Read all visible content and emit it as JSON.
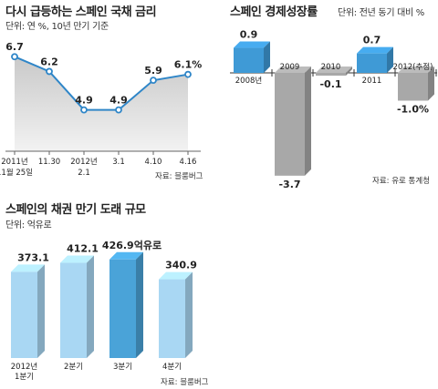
{
  "chart_data": [
    {
      "type": "line",
      "title": "다시 급등하는 스페인 국채 금리",
      "subtitle": "단위: 연 %, 10년 만기 기준",
      "source": "자료: 블룸버그",
      "x": [
        "2011년 11월 25일",
        "11.30",
        "2012년 2.1",
        "3.1",
        "4.10",
        "4.16"
      ],
      "x_lines": [
        [
          "2011년",
          "11월 25일"
        ],
        [
          "11.30"
        ],
        [
          "2012년",
          "2.1"
        ],
        [
          "3.1"
        ],
        [
          "4.10"
        ],
        [
          "4.16"
        ]
      ],
      "values": [
        6.7,
        6.2,
        4.9,
        4.9,
        5.9,
        6.1
      ],
      "value_labels": [
        "6.7",
        "6.2",
        "4.9",
        "4.9",
        "5.9",
        "6.1%"
      ],
      "ylim": [
        3.5,
        7.2
      ],
      "colors": {
        "line": "#2f86c8",
        "area_top": "#c9c9c9",
        "area_bottom": "#f2f2f2"
      }
    },
    {
      "type": "bar",
      "title": "스페인 경제성장률",
      "subtitle": "단위: 전년 동기 대비 %",
      "source": "자료: 유로 통계청",
      "categories": [
        "2008년",
        "2009",
        "2010",
        "2011",
        "2012(추정)"
      ],
      "values": [
        0.9,
        -3.7,
        -0.1,
        0.7,
        -1.0
      ],
      "value_labels": [
        "0.9",
        "-3.7",
        "-0.1",
        "0.7",
        "-1.0%"
      ],
      "ylim": [
        -3.7,
        0.9
      ],
      "colors": {
        "positive": "#3f9ad6",
        "negative": "#a8a8a8"
      }
    },
    {
      "type": "bar",
      "title": "스페인의 채권 만기 도래 규모",
      "subtitle": "단위: 억유로",
      "source": "자료: 블룸버그",
      "categories": [
        "2012년 1분기",
        "2분기",
        "3분기",
        "4분기"
      ],
      "category_lines": [
        [
          "2012년",
          "1분기"
        ],
        [
          "2분기"
        ],
        [
          "3분기"
        ],
        [
          "4분기"
        ]
      ],
      "values": [
        373.1,
        412.1,
        426.9,
        340.9
      ],
      "value_labels": [
        "373.1",
        "412.1",
        "426.9억유로",
        "340.9"
      ],
      "ylim": [
        0,
        430
      ],
      "colors": {
        "bar": "#a9d7f3",
        "highlight": "#4aa3d8"
      },
      "highlight_index": 2
    }
  ]
}
